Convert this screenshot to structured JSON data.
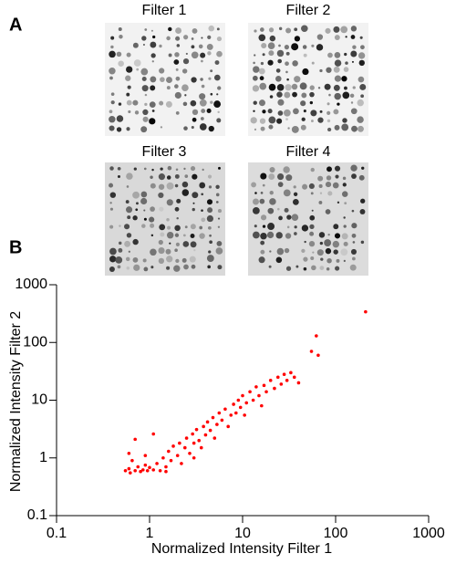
{
  "panels": {
    "a": "A",
    "b": "B"
  },
  "filters": [
    "Filter 1",
    "Filter 2",
    "Filter 3",
    "Filter 4"
  ],
  "chart_data": {
    "type": "scatter",
    "x_label": "Normalized Intensity Filter 1",
    "y_label": "Normalized Intensity Filter 2",
    "x": [
      0.55,
      0.6,
      0.62,
      0.7,
      0.75,
      0.8,
      0.85,
      0.9,
      0.95,
      1.0,
      0.65,
      0.6,
      0.7,
      0.9,
      1.1,
      1.2,
      1.3,
      1.4,
      1.5,
      1.6,
      1.7,
      1.8,
      2.0,
      2.1,
      2.2,
      2.4,
      2.5,
      2.7,
      2.9,
      3.0,
      3.2,
      3.4,
      3.6,
      3.8,
      4.0,
      4.2,
      4.5,
      4.8,
      5.0,
      5.3,
      5.6,
      6.0,
      6.5,
      7.0,
      7.5,
      8.0,
      8.5,
      9.0,
      9.5,
      10,
      10.5,
      11,
      12,
      13,
      14,
      15,
      16,
      17,
      18,
      20,
      22,
      24,
      26,
      28,
      30,
      33,
      36,
      40,
      1.1,
      1.5,
      3.0,
      55,
      62,
      65,
      210
    ],
    "series": [
      {
        "color": "#ff0000",
        "values": [
          0.6,
          0.65,
          0.55,
          0.6,
          0.7,
          0.58,
          0.62,
          0.75,
          0.6,
          0.68,
          0.9,
          1.2,
          2.1,
          1.1,
          0.62,
          0.8,
          0.6,
          1.0,
          0.7,
          1.3,
          0.9,
          1.6,
          1.1,
          1.8,
          0.8,
          1.5,
          2.2,
          1.2,
          2.6,
          1.8,
          3.1,
          2.0,
          1.5,
          3.5,
          2.5,
          4.2,
          3.0,
          5.0,
          2.2,
          3.8,
          6.0,
          4.5,
          7.0,
          3.5,
          5.5,
          8.5,
          6.0,
          10,
          7.5,
          12,
          5.5,
          9,
          14,
          10,
          17,
          12,
          8,
          18,
          14,
          22,
          16,
          25,
          19,
          28,
          22,
          30,
          25,
          20,
          2.6,
          0.58,
          1.0,
          70,
          130,
          60,
          340
        ]
      }
    ],
    "log_x": true,
    "log_y": true,
    "xlim": [
      0.1,
      1000
    ],
    "ylim": [
      0.1,
      1000
    ],
    "xticks": [
      0.1,
      1,
      10,
      100,
      1000
    ],
    "yticks": [
      0.1,
      1,
      10,
      100,
      1000
    ]
  }
}
